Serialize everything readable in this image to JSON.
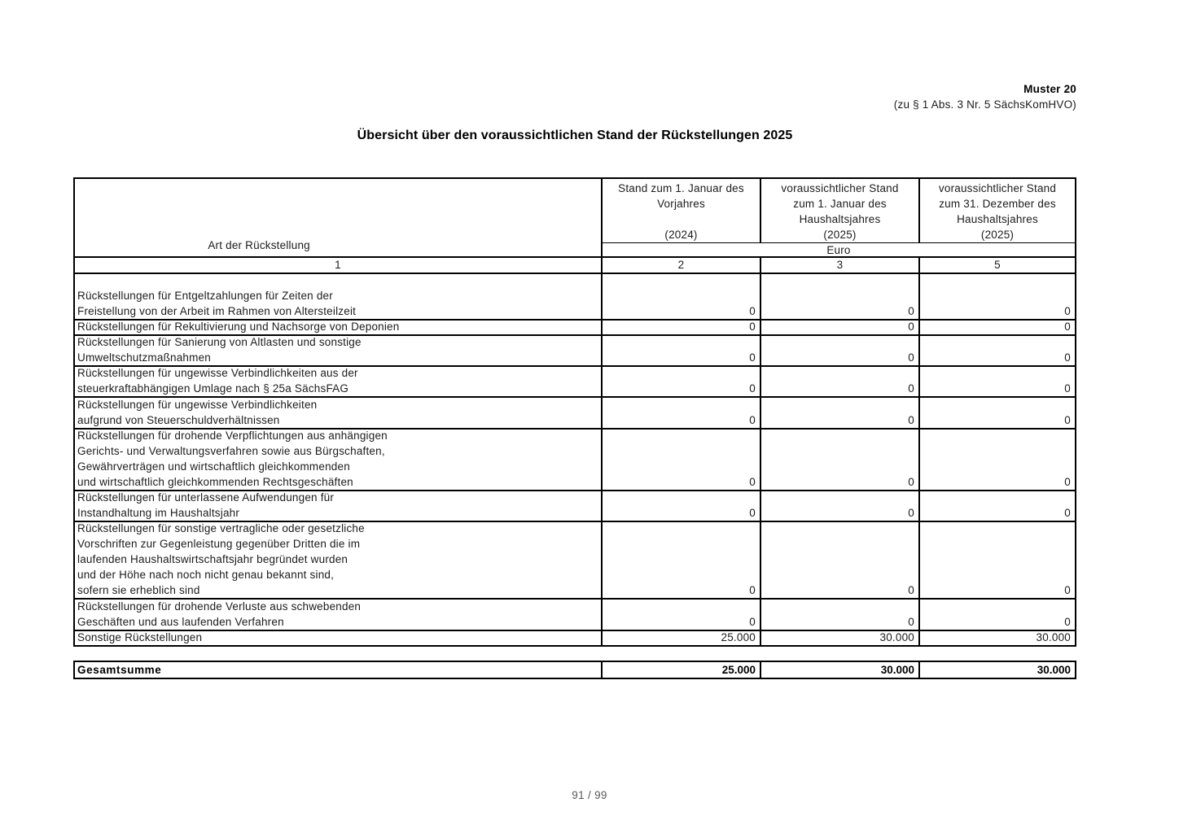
{
  "page": {
    "muster_label": "Muster 20",
    "muster_ref": "(zu § 1 Abs. 3 Nr. 5 SächsKomHVO)",
    "title": "Übersicht über den voraussichtlichen Stand der Rückstellungen 2025",
    "page_number": "91 / 99"
  },
  "table": {
    "header": {
      "col1": "Art der Rückstellung",
      "col2": "Stand zum 1. Januar des\nVorjahres\n \n(2024)",
      "col3": "voraussichtlicher Stand\nzum 1. Januar des\nHaushaltsjahres\n(2025)",
      "col4": "voraussichtlicher Stand\nzum 31. Dezember des\nHaushaltsjahres\n(2025)",
      "unit": "Euro",
      "col_numbers": [
        "1",
        "2",
        "3",
        "5"
      ]
    },
    "rows": [
      {
        "label": "Rückstellungen für Entgeltzahlungen für Zeiten der\nFreistellung von der Arbeit im Rahmen von Altersteilzeit",
        "values": [
          "0",
          "0",
          "0"
        ]
      },
      {
        "label": "Rückstellungen für Rekultivierung und Nachsorge von Deponien",
        "values": [
          "0",
          "0",
          "0"
        ]
      },
      {
        "label": "Rückstellungen für Sanierung von Altlasten und sonstige\nUmweltschutzmaßnahmen",
        "values": [
          "0",
          "0",
          "0"
        ]
      },
      {
        "label": "Rückstellungen für ungewisse Verbindlichkeiten aus der\nsteuerkraftabhängigen Umlage nach § 25a SächsFAG",
        "values": [
          "0",
          "0",
          "0"
        ]
      },
      {
        "label": "Rückstellungen für ungewisse Verbindlichkeiten\naufgrund von Steuerschuldverhältnissen",
        "values": [
          "0",
          "0",
          "0"
        ]
      },
      {
        "label": "Rückstellungen für drohende Verpflichtungen aus anhängigen\nGerichts- und Verwaltungsverfahren sowie aus Bürgschaften,\nGewährverträgen und wirtschaftlich gleichkommenden\nund wirtschaftlich gleichkommenden Rechtsgeschäften",
        "values": [
          "0",
          "0",
          "0"
        ]
      },
      {
        "label": "Rückstellungen für unterlassene Aufwendungen für\nInstandhaltung im Haushaltsjahr",
        "values": [
          "0",
          "0",
          "0"
        ]
      },
      {
        "label": "Rückstellungen für sonstige vertragliche oder gesetzliche\nVorschriften zur Gegenleistung gegenüber Dritten die im\nlaufenden Haushaltswirtschaftsjahr begründet wurden\nund der Höhe nach noch nicht genau bekannt sind,\nsofern sie erheblich sind",
        "values": [
          "0",
          "0",
          "0"
        ]
      },
      {
        "label": "Rückstellungen für drohende Verluste aus schwebenden\nGeschäften und aus laufenden Verfahren",
        "values": [
          "0",
          "0",
          "0"
        ]
      },
      {
        "label": "Sonstige Rückstellungen",
        "values": [
          "25.000",
          "30.000",
          "30.000"
        ]
      }
    ],
    "total": {
      "label": "Gesamtsumme",
      "values": [
        "25.000",
        "30.000",
        "30.000"
      ]
    }
  }
}
